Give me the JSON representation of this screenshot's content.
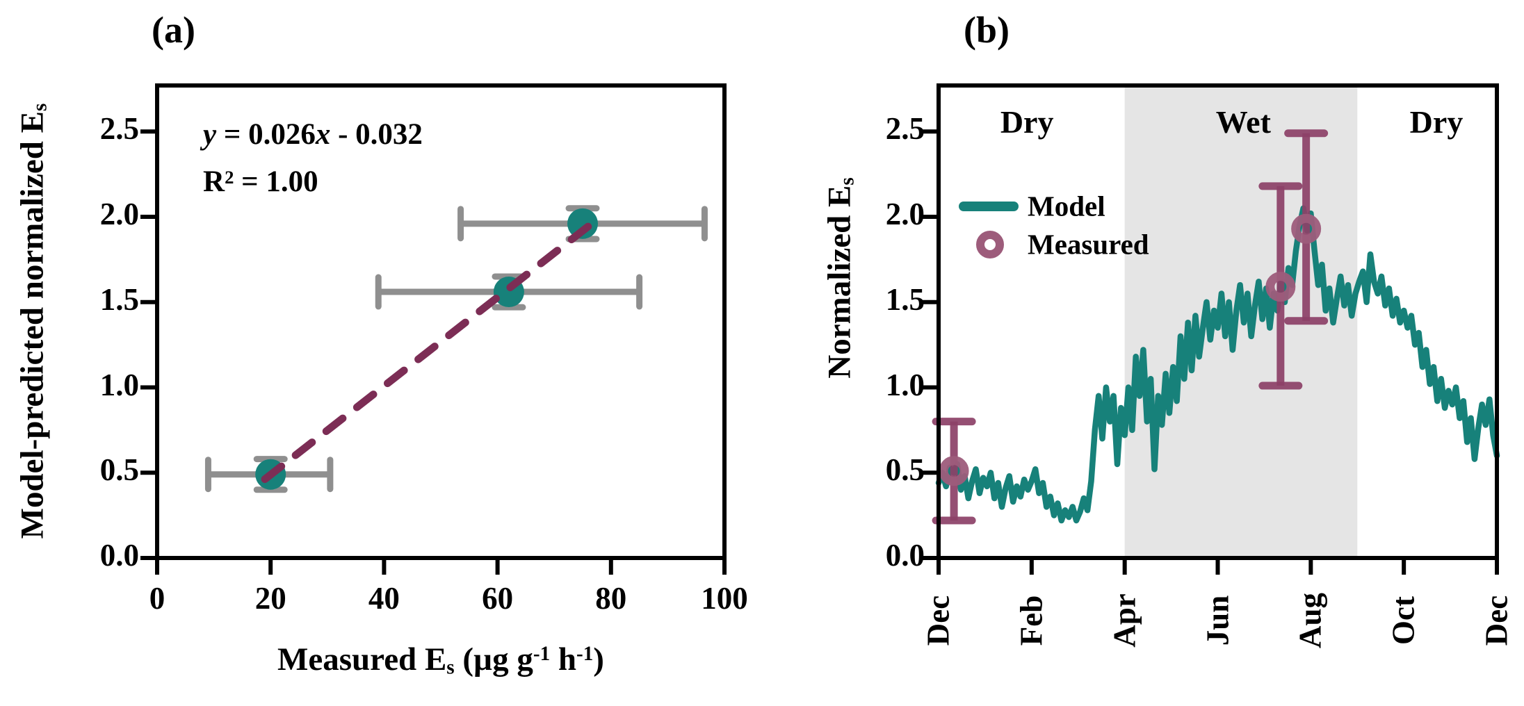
{
  "colors": {
    "teal": "#17817a",
    "purple_bar": "#8d4168",
    "purple_ring": "#9d5c7b",
    "fit_dash": "#7c2d55",
    "gray_bar": "#8f8f8f",
    "wet_band": "#e5e5e5",
    "axis": "#000000"
  },
  "text": {
    "panel_a_label": "(a)",
    "panel_b_label": "(b)",
    "eq_line1": [
      [
        "i",
        "y"
      ],
      [
        "n",
        " = 0.026"
      ],
      [
        "i",
        "x"
      ],
      [
        "n",
        " - 0.032"
      ]
    ],
    "eq_line2": [
      [
        "n",
        "R"
      ],
      [
        "sup",
        "2"
      ],
      [
        "n",
        " = 1.00"
      ]
    ],
    "a_xlabel": [
      [
        "n",
        "Measured E"
      ],
      [
        "sub",
        "s"
      ],
      [
        "n",
        " (µg g"
      ],
      [
        "sup",
        "-1"
      ],
      [
        "n",
        " h"
      ],
      [
        "sup",
        "-1"
      ],
      [
        "n",
        ")"
      ]
    ],
    "a_ylabel": [
      [
        "n",
        "Model-predicted normalized E"
      ],
      [
        "sub",
        "s"
      ]
    ],
    "b_ylabel": [
      [
        "n",
        "Normalized E"
      ],
      [
        "sub",
        "s"
      ]
    ]
  },
  "chart_data": [
    {
      "id": "a",
      "type": "scatter",
      "title": "(a)",
      "xlabel": "Measured Es (ug g-1 h-1)",
      "ylabel": "Model-predicted normalized Es",
      "annotation": [
        "y = 0.026x - 0.032",
        "R² = 1.00"
      ],
      "xlim": [
        0,
        100
      ],
      "ylim": [
        0,
        2.77
      ],
      "xticks": [
        0,
        20,
        40,
        60,
        80,
        100
      ],
      "yticks": [
        "0.0",
        "0.5",
        "1.0",
        "1.5",
        "2.0",
        "2.5"
      ],
      "grid": false,
      "points": [
        {
          "x": 20,
          "y": 0.49,
          "xerr_low": 9,
          "xerr_high": 30.5,
          "yerr": 0.09
        },
        {
          "x": 62,
          "y": 1.56,
          "xerr_low": 39,
          "xerr_high": 85,
          "yerr": 0.09
        },
        {
          "x": 75,
          "y": 1.96,
          "xerr_low": 53.5,
          "xerr_high": 96.5,
          "yerr": 0.09
        }
      ],
      "fit_line": {
        "slope": 0.026,
        "intercept": -0.032,
        "x_start": 19,
        "x_end": 76.5,
        "style": "dashed"
      }
    },
    {
      "id": "b",
      "type": "line",
      "title": "(b)",
      "ylabel": "Normalized Es",
      "xlim": [
        0,
        12
      ],
      "ylim": [
        0,
        2.77
      ],
      "xticks": [
        0,
        2,
        4,
        6,
        8,
        10,
        12
      ],
      "xtick_labels": [
        "Dec",
        "Feb",
        "Apr",
        "Jun",
        "Aug",
        "Oct",
        "Dec"
      ],
      "yticks": [
        "0.0",
        "0.5",
        "1.0",
        "1.5",
        "2.0",
        "2.5"
      ],
      "grid": false,
      "wet_band": {
        "x_start": 4,
        "x_end": 9
      },
      "season_labels": [
        {
          "label": "Dry",
          "x": 1.9,
          "y": 2.55
        },
        {
          "label": "Wet",
          "x": 6.55,
          "y": 2.55
        },
        {
          "label": "Dry",
          "x": 10.7,
          "y": 2.55
        }
      ],
      "legend": {
        "position": "upper-left",
        "items": [
          {
            "label": "Model",
            "marker": "line"
          },
          {
            "label": "Measured",
            "marker": "ring"
          }
        ]
      },
      "measured_points": [
        {
          "x": 0.33,
          "y": 0.51,
          "err_low": 0.22,
          "err_high": 0.8
        },
        {
          "x": 7.35,
          "y": 1.59,
          "err_low": 1.01,
          "err_high": 2.18
        },
        {
          "x": 7.9,
          "y": 1.93,
          "err_low": 1.39,
          "err_high": 2.49
        }
      ],
      "model_series": [
        [
          0,
          0.44
        ],
        [
          0.08,
          0.5
        ],
        [
          0.16,
          0.42
        ],
        [
          0.24,
          0.53
        ],
        [
          0.33,
          0.5
        ],
        [
          0.4,
          0.55
        ],
        [
          0.48,
          0.4
        ],
        [
          0.56,
          0.48
        ],
        [
          0.64,
          0.35
        ],
        [
          0.72,
          0.45
        ],
        [
          0.8,
          0.52
        ],
        [
          0.88,
          0.38
        ],
        [
          0.96,
          0.47
        ],
        [
          1.04,
          0.42
        ],
        [
          1.12,
          0.5
        ],
        [
          1.2,
          0.35
        ],
        [
          1.28,
          0.44
        ],
        [
          1.36,
          0.3
        ],
        [
          1.44,
          0.41
        ],
        [
          1.52,
          0.48
        ],
        [
          1.6,
          0.33
        ],
        [
          1.68,
          0.42
        ],
        [
          1.76,
          0.36
        ],
        [
          1.84,
          0.46
        ],
        [
          1.92,
          0.4
        ],
        [
          2,
          0.45
        ],
        [
          2.08,
          0.52
        ],
        [
          2.16,
          0.38
        ],
        [
          2.24,
          0.44
        ],
        [
          2.32,
          0.3
        ],
        [
          2.4,
          0.36
        ],
        [
          2.48,
          0.25
        ],
        [
          2.56,
          0.32
        ],
        [
          2.64,
          0.22
        ],
        [
          2.72,
          0.28
        ],
        [
          2.8,
          0.24
        ],
        [
          2.88,
          0.3
        ],
        [
          2.96,
          0.22
        ],
        [
          3.04,
          0.27
        ],
        [
          3.12,
          0.35
        ],
        [
          3.2,
          0.28
        ],
        [
          3.28,
          0.45
        ],
        [
          3.36,
          0.75
        ],
        [
          3.44,
          0.95
        ],
        [
          3.52,
          0.7
        ],
        [
          3.6,
          1.0
        ],
        [
          3.68,
          0.8
        ],
        [
          3.76,
          0.95
        ],
        [
          3.84,
          0.55
        ],
        [
          3.92,
          0.88
        ],
        [
          4,
          0.72
        ],
        [
          4.08,
          1.0
        ],
        [
          4.16,
          0.75
        ],
        [
          4.24,
          1.18
        ],
        [
          4.32,
          0.95
        ],
        [
          4.4,
          1.22
        ],
        [
          4.48,
          0.8
        ],
        [
          4.56,
          1.05
        ],
        [
          4.64,
          0.52
        ],
        [
          4.72,
          0.95
        ],
        [
          4.8,
          0.78
        ],
        [
          4.88,
          1.08
        ],
        [
          4.96,
          0.85
        ],
        [
          5.04,
          1.12
        ],
        [
          5.12,
          0.92
        ],
        [
          5.2,
          1.3
        ],
        [
          5.28,
          1.05
        ],
        [
          5.36,
          1.38
        ],
        [
          5.44,
          1.1
        ],
        [
          5.52,
          1.42
        ],
        [
          5.6,
          1.18
        ],
        [
          5.68,
          1.35
        ],
        [
          5.76,
          1.5
        ],
        [
          5.84,
          1.28
        ],
        [
          5.92,
          1.45
        ],
        [
          6,
          1.35
        ],
        [
          6.08,
          1.55
        ],
        [
          6.16,
          1.3
        ],
        [
          6.24,
          1.5
        ],
        [
          6.32,
          1.22
        ],
        [
          6.4,
          1.45
        ],
        [
          6.48,
          1.6
        ],
        [
          6.56,
          1.38
        ],
        [
          6.64,
          1.55
        ],
        [
          6.72,
          1.3
        ],
        [
          6.8,
          1.48
        ],
        [
          6.88,
          1.62
        ],
        [
          6.96,
          1.4
        ],
        [
          7.04,
          1.58
        ],
        [
          7.12,
          1.35
        ],
        [
          7.2,
          1.55
        ],
        [
          7.28,
          1.45
        ],
        [
          7.36,
          1.62
        ],
        [
          7.44,
          1.5
        ],
        [
          7.52,
          1.7
        ],
        [
          7.6,
          1.6
        ],
        [
          7.68,
          1.8
        ],
        [
          7.76,
          1.95
        ],
        [
          7.84,
          2.05
        ],
        [
          7.92,
          1.92
        ],
        [
          8,
          2.02
        ],
        [
          8.08,
          1.8
        ],
        [
          8.16,
          1.6
        ],
        [
          8.24,
          1.72
        ],
        [
          8.32,
          1.45
        ],
        [
          8.4,
          1.58
        ],
        [
          8.48,
          1.38
        ],
        [
          8.56,
          1.52
        ],
        [
          8.64,
          1.65
        ],
        [
          8.72,
          1.48
        ],
        [
          8.8,
          1.6
        ],
        [
          8.88,
          1.42
        ],
        [
          8.96,
          1.55
        ],
        [
          9.04,
          1.62
        ],
        [
          9.12,
          1.68
        ],
        [
          9.2,
          1.5
        ],
        [
          9.28,
          1.78
        ],
        [
          9.36,
          1.62
        ],
        [
          9.44,
          1.55
        ],
        [
          9.52,
          1.65
        ],
        [
          9.6,
          1.48
        ],
        [
          9.68,
          1.58
        ],
        [
          9.76,
          1.42
        ],
        [
          9.84,
          1.52
        ],
        [
          9.92,
          1.38
        ],
        [
          10,
          1.45
        ],
        [
          10.08,
          1.35
        ],
        [
          10.16,
          1.42
        ],
        [
          10.24,
          1.25
        ],
        [
          10.32,
          1.32
        ],
        [
          10.4,
          1.12
        ],
        [
          10.48,
          1.22
        ],
        [
          10.56,
          1.02
        ],
        [
          10.64,
          1.12
        ],
        [
          10.72,
          0.92
        ],
        [
          10.8,
          1.05
        ],
        [
          10.88,
          0.88
        ],
        [
          10.96,
          0.98
        ],
        [
          11.04,
          0.9
        ],
        [
          11.12,
          1.0
        ],
        [
          11.2,
          0.82
        ],
        [
          11.28,
          0.92
        ],
        [
          11.36,
          0.68
        ],
        [
          11.44,
          0.82
        ],
        [
          11.52,
          0.58
        ],
        [
          11.6,
          0.76
        ],
        [
          11.68,
          0.9
        ],
        [
          11.76,
          0.78
        ],
        [
          11.84,
          0.93
        ],
        [
          11.92,
          0.72
        ],
        [
          12,
          0.6
        ]
      ]
    }
  ]
}
